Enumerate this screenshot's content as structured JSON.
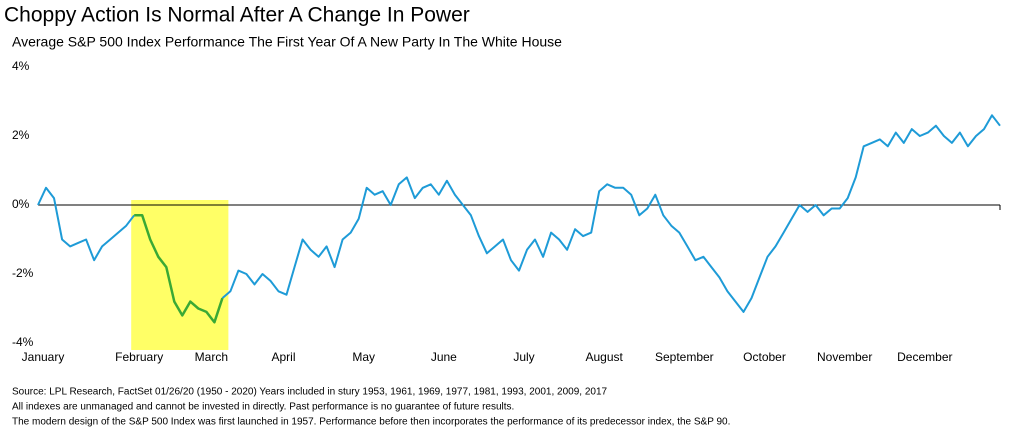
{
  "chart_data": {
    "type": "line",
    "title": "Choppy Action Is Normal After A Change In Power",
    "subtitle": "Average S&P 500 Index Performance The First Year Of A New Party In The White House",
    "notes": [
      "Source: LPL Research, FactSet 01/26/20 (1950 - 2020)    Years included in stury 1953, 1961, 1969, 1977, 1981, 1993, 2001, 2009, 2017",
      "All indexes are unmanaged and cannot be invested in directly. Past performance is no guarantee of future results.",
      "The modern design of the S&P 500  Index was first launched in 1957.  Performance before then incorporates the performance of its  predecessor index, the S&P 90."
    ],
    "categories": [
      "January",
      null,
      null,
      null,
      null,
      null,
      null,
      null,
      null,
      null,
      null,
      null,
      "February",
      null,
      null,
      null,
      null,
      null,
      null,
      null,
      null,
      "March",
      null,
      null,
      null,
      null,
      null,
      null,
      null,
      null,
      "April",
      null,
      null,
      null,
      null,
      null,
      null,
      null,
      null,
      null,
      "May",
      null,
      null,
      null,
      null,
      null,
      null,
      null,
      null,
      null,
      "June",
      null,
      null,
      null,
      null,
      null,
      null,
      null,
      null,
      null,
      "July",
      null,
      null,
      null,
      null,
      null,
      null,
      null,
      null,
      null,
      "August",
      null,
      null,
      null,
      null,
      null,
      null,
      null,
      null,
      null,
      "September",
      null,
      null,
      null,
      null,
      null,
      null,
      null,
      null,
      null,
      "October",
      null,
      null,
      null,
      null,
      null,
      null,
      null,
      null,
      null,
      "November",
      null,
      null,
      null,
      null,
      null,
      null,
      null,
      null,
      null,
      "December",
      null,
      null,
      null,
      null,
      null,
      null,
      null,
      null,
      null,
      null
    ],
    "series": [
      {
        "color": "#1e9bd7",
        "values": [
          0,
          0.5,
          0.2,
          -1.0,
          -1.2,
          -1.1,
          -1.0,
          -1.6,
          -1.2,
          -1.0,
          -0.8,
          -0.6,
          -0.3,
          null,
          null,
          null,
          null,
          null,
          null,
          null,
          null,
          null,
          null,
          -2.7,
          -2.5,
          -1.9,
          -2.0,
          -2.3,
          -2.0,
          -2.2,
          -2.5,
          -2.6,
          -1.8,
          -1.0,
          -1.3,
          -1.5,
          -1.2,
          -1.8,
          -1.0,
          -0.8,
          -0.4,
          0.5,
          0.3,
          0.4,
          0,
          0.6,
          0.8,
          0.2,
          0.5,
          0.6,
          0.3,
          0.7,
          0.3,
          0,
          -0.3,
          -0.9,
          -1.4,
          -1.2,
          -1.0,
          -1.6,
          -1.9,
          -1.3,
          -1.0,
          -1.5,
          -0.8,
          -1.0,
          -1.3,
          -0.7,
          -0.9,
          -0.8,
          0.4,
          0.6,
          0.5,
          0.5,
          0.3,
          -0.3,
          -0.1,
          0.3,
          -0.3,
          -0.6,
          -0.8,
          -1.2,
          -1.6,
          -1.5,
          -1.8,
          -2.1,
          -2.5,
          -2.8,
          -3.1,
          -2.7,
          -2.1,
          -1.5,
          -1.2,
          -0.8,
          -0.4,
          0,
          -0.2,
          0,
          -0.3,
          -0.1,
          -0.1,
          0.2,
          0.8,
          1.7,
          1.8,
          1.9,
          1.7,
          2.1,
          1.8,
          2.2,
          2.0,
          2.1,
          2.3,
          2.0,
          1.8,
          2.1,
          1.7,
          2.0,
          2.2,
          2.6,
          2.3
        ]
      },
      {
        "color": "#3aa935",
        "values": [
          null,
          null,
          null,
          null,
          null,
          null,
          null,
          null,
          null,
          null,
          null,
          null,
          -0.3,
          -0.3,
          -1.0,
          -1.5,
          -1.8,
          -2.8,
          -3.2,
          -2.8,
          -3.0,
          -3.1,
          -3.4,
          -2.7,
          null,
          null,
          null,
          null,
          null,
          null,
          null,
          null,
          null,
          null,
          null,
          null,
          null,
          null,
          null,
          null,
          null,
          null,
          null,
          null,
          null,
          null,
          null,
          null,
          null,
          null,
          null,
          null,
          null,
          null,
          null,
          null,
          null,
          null,
          null,
          null,
          null,
          null,
          null,
          null,
          null,
          null,
          null,
          null,
          null,
          null,
          null,
          null,
          null,
          null,
          null,
          null,
          null,
          null,
          null,
          null,
          null,
          null,
          null,
          null,
          null,
          null,
          null,
          null,
          null,
          null,
          null,
          null,
          null,
          null,
          null,
          null,
          null,
          null,
          null,
          null,
          null,
          null,
          null,
          null,
          null,
          null,
          null,
          null,
          null,
          null,
          null,
          null,
          null,
          null,
          null,
          null,
          null,
          null,
          null,
          null,
          null
        ]
      }
    ],
    "highlight_color": "#ffff66",
    "ylim": [
      -4,
      4
    ],
    "yticks": [
      {
        "value": -4,
        "label": "-4%"
      },
      {
        "value": -2,
        "label": "-2%"
      },
      {
        "value": 0,
        "label": "0%"
      },
      {
        "value": 2,
        "label": "2%"
      },
      {
        "value": 4,
        "label": "4%"
      }
    ],
    "grid": false
  }
}
